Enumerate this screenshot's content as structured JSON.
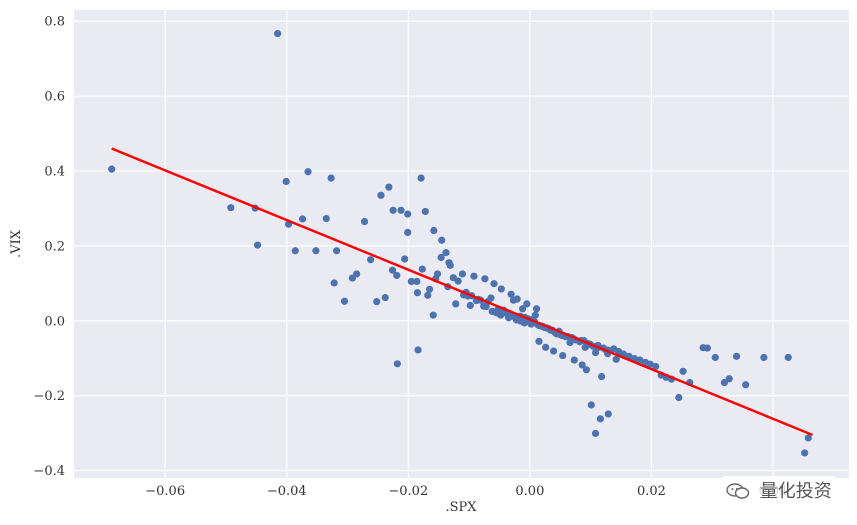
{
  "chart_data": {
    "type": "scatter",
    "title": "",
    "xlabel": ".SPX",
    "ylabel": ".VIX",
    "xlim": [
      -0.075,
      0.0525
    ],
    "ylim": [
      -0.42,
      0.83
    ],
    "xticks": [
      -0.06,
      -0.04,
      -0.02,
      0.0,
      0.02,
      0.04
    ],
    "xtick_labels": [
      "−0.06",
      "−0.04",
      "−0.02",
      "0.00",
      "0.02",
      "0.04"
    ],
    "yticks": [
      -0.4,
      -0.2,
      0.0,
      0.2,
      0.4,
      0.6,
      0.8
    ],
    "ytick_labels": [
      "−0.4",
      "−0.2",
      "0.0",
      "0.2",
      "0.4",
      "0.6",
      "0.8"
    ],
    "grid": true,
    "background": "#EAEAF2",
    "colors": {
      "points": "#4C72B0",
      "regression": "#FF0000",
      "grid": "#FFFFFF"
    },
    "points": {
      "x": [
        -0.0688,
        -0.0415,
        -0.0492,
        -0.0452,
        -0.0448,
        -0.0401,
        -0.0397,
        -0.0386,
        -0.0374,
        -0.0365,
        -0.0352,
        -0.0335,
        -0.0327,
        -0.0322,
        -0.0318,
        -0.0305,
        -0.0292,
        -0.0285,
        -0.0272,
        -0.0262,
        -0.0252,
        -0.0245,
        -0.0238,
        -0.0232,
        -0.0226,
        -0.0219,
        -0.0212,
        -0.0206,
        -0.0201,
        -0.0195,
        -0.0186,
        -0.0179,
        -0.0172,
        -0.0165,
        -0.0158,
        -0.0152,
        -0.0145,
        -0.0138,
        -0.0131,
        -0.0126,
        -0.0118,
        -0.0109,
        -0.0102,
        -0.0096,
        -0.0088,
        -0.0081,
        -0.0076,
        -0.0069,
        -0.0062,
        -0.0055,
        -0.0048,
        -0.0041,
        -0.0035,
        -0.0028,
        -0.0022,
        -0.0015,
        -0.0009,
        -0.0003,
        0.0002,
        0.0008,
        0.0014,
        0.0021,
        0.0027,
        0.0034,
        0.0041,
        0.0048,
        0.0055,
        0.0062,
        0.0069,
        0.0075,
        0.0082,
        0.0089,
        0.0096,
        0.0104,
        0.0112,
        0.0121,
        0.0129,
        0.0138,
        0.0146,
        0.0154,
        0.0163,
        0.0172,
        0.0181,
        0.019,
        0.0198,
        0.0207,
        0.0216,
        0.0224,
        0.0233,
        0.0245,
        0.0252,
        0.0263,
        0.0285,
        0.0292,
        0.0305,
        0.032,
        0.0328,
        0.034,
        0.0355,
        0.0385,
        0.0425,
        0.0452,
        0.0458,
        -0.0185,
        -0.0168,
        -0.0122,
        -0.0098,
        -0.0072,
        -0.0052,
        -0.0033,
        -0.0018,
        -0.0008,
        0.0006,
        0.0018,
        0.0031,
        0.0044,
        0.0058,
        0.0071,
        0.0084,
        0.0099,
        0.0113,
        0.0125,
        0.0009,
        -0.0012,
        0.0037,
        -0.0027,
        0.0052,
        -0.0064,
        0.0066,
        0.0004,
        -0.0043,
        0.0024,
        -0.0016,
        0.0047,
        -0.0085,
        0.0091,
        -0.0105,
        0.0108,
        -0.0135,
        0.0128,
        -0.0155,
        0.0142,
        0.0108,
        0.0101,
        0.0116,
        0.0129,
        -0.0184,
        -0.0218,
        -0.0159,
        -0.0177,
        0.0015,
        -0.0005,
        0.0026,
        0.0011,
        -0.0021,
        0.0039,
        -0.0031,
        0.0054,
        -0.0047,
        0.0073,
        -0.0059,
        0.0086,
        -0.0074,
        0.0093,
        -0.0092,
        0.0118,
        -0.0111,
        -0.0201,
        -0.0225,
        -0.0146,
        -0.0133
      ],
      "y": [
        0.405,
        0.767,
        0.302,
        0.301,
        0.202,
        0.372,
        0.258,
        0.187,
        0.272,
        0.398,
        0.187,
        0.273,
        0.381,
        0.101,
        0.187,
        0.052,
        0.114,
        0.125,
        0.265,
        0.163,
        0.051,
        0.335,
        0.062,
        0.357,
        0.135,
        0.121,
        0.295,
        0.165,
        0.236,
        0.105,
        0.105,
        0.381,
        0.292,
        0.084,
        0.241,
        0.125,
        0.215,
        0.182,
        0.148,
        0.115,
        0.106,
        0.069,
        0.066,
        0.067,
        0.054,
        0.055,
        0.039,
        0.051,
        0.025,
        0.021,
        0.015,
        0.021,
        0.008,
        0.012,
        0.002,
        -0.001,
        -0.006,
        0.005,
        -0.009,
        -0.003,
        -0.012,
        -0.015,
        -0.019,
        -0.025,
        -0.031,
        -0.028,
        -0.039,
        -0.042,
        -0.045,
        -0.051,
        -0.056,
        -0.053,
        -0.061,
        -0.068,
        -0.066,
        -0.073,
        -0.079,
        -0.075,
        -0.082,
        -0.089,
        -0.095,
        -0.101,
        -0.105,
        -0.111,
        -0.116,
        -0.122,
        -0.145,
        -0.151,
        -0.156,
        -0.205,
        -0.135,
        -0.165,
        -0.072,
        -0.073,
        -0.098,
        -0.165,
        -0.155,
        -0.095,
        -0.171,
        -0.098,
        -0.098,
        -0.353,
        -0.313,
        0.075,
        0.068,
        0.045,
        0.041,
        0.038,
        0.031,
        0.019,
        0.011,
        0.009,
        -0.006,
        -0.014,
        -0.021,
        -0.035,
        -0.042,
        -0.047,
        -0.053,
        -0.063,
        -0.071,
        -0.078,
        0.015,
        0.032,
        -0.025,
        0.055,
        -0.039,
        0.061,
        -0.058,
        0.003,
        0.028,
        -0.018,
        0.012,
        -0.035,
        0.057,
        -0.071,
        0.076,
        -0.085,
        0.091,
        -0.088,
        0.112,
        -0.103,
        -0.301,
        -0.225,
        -0.262,
        -0.249,
        -0.078,
        -0.115,
        0.015,
        0.138,
        -0.055,
        0.045,
        -0.071,
        0.032,
        0.058,
        -0.081,
        0.071,
        -0.093,
        0.085,
        -0.105,
        0.099,
        -0.118,
        0.112,
        -0.131,
        0.119,
        -0.149,
        0.125,
        0.285,
        0.295,
        0.169,
        0.155
      ]
    },
    "regression_line": {
      "x": [
        -0.0688,
        0.0465
      ],
      "y": [
        0.46,
        -0.305
      ]
    }
  },
  "watermark": {
    "text": "量化投资",
    "icon": "wechat-bubbles-icon"
  }
}
